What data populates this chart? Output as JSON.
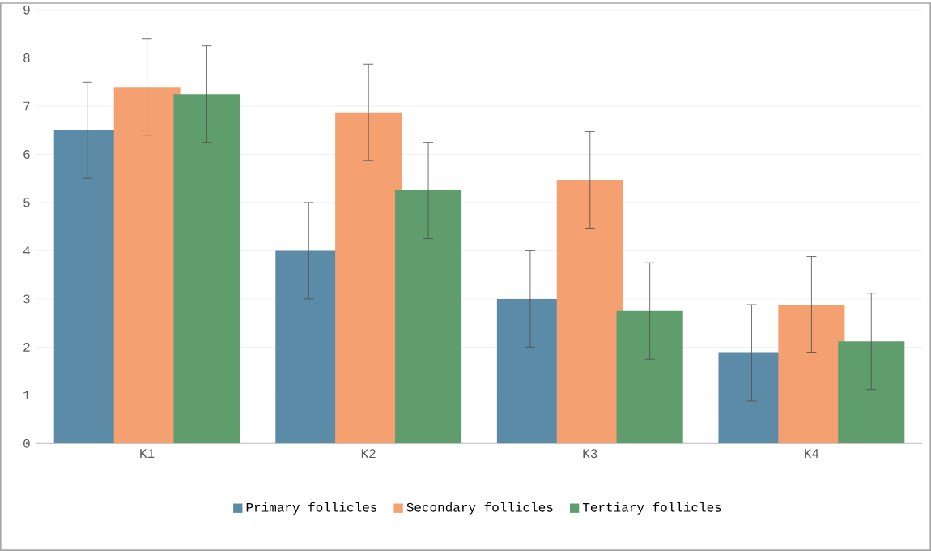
{
  "chart_data": {
    "type": "bar",
    "categories": [
      "K1",
      "K2",
      "K3",
      "K4"
    ],
    "series": [
      {
        "name": "Primary follicles",
        "color": "#5b8ba6",
        "values": [
          6.5,
          4.0,
          3.0,
          1.88
        ],
        "errors": [
          1,
          1,
          1,
          1
        ]
      },
      {
        "name": "Secondary follicles",
        "color": "#f4a070",
        "values": [
          7.4,
          6.87,
          5.47,
          2.88
        ],
        "errors": [
          1,
          1,
          1,
          1
        ]
      },
      {
        "name": "Tertiary follicles",
        "color": "#5f9e6c",
        "values": [
          7.25,
          5.25,
          2.75,
          2.12
        ],
        "errors": [
          1,
          1,
          1,
          1
        ]
      }
    ],
    "ylim": [
      0,
      9
    ],
    "yticks": [
      0,
      1,
      2,
      3,
      4,
      5,
      6,
      7,
      8,
      9
    ],
    "grid": "y",
    "legend": "bottom"
  }
}
